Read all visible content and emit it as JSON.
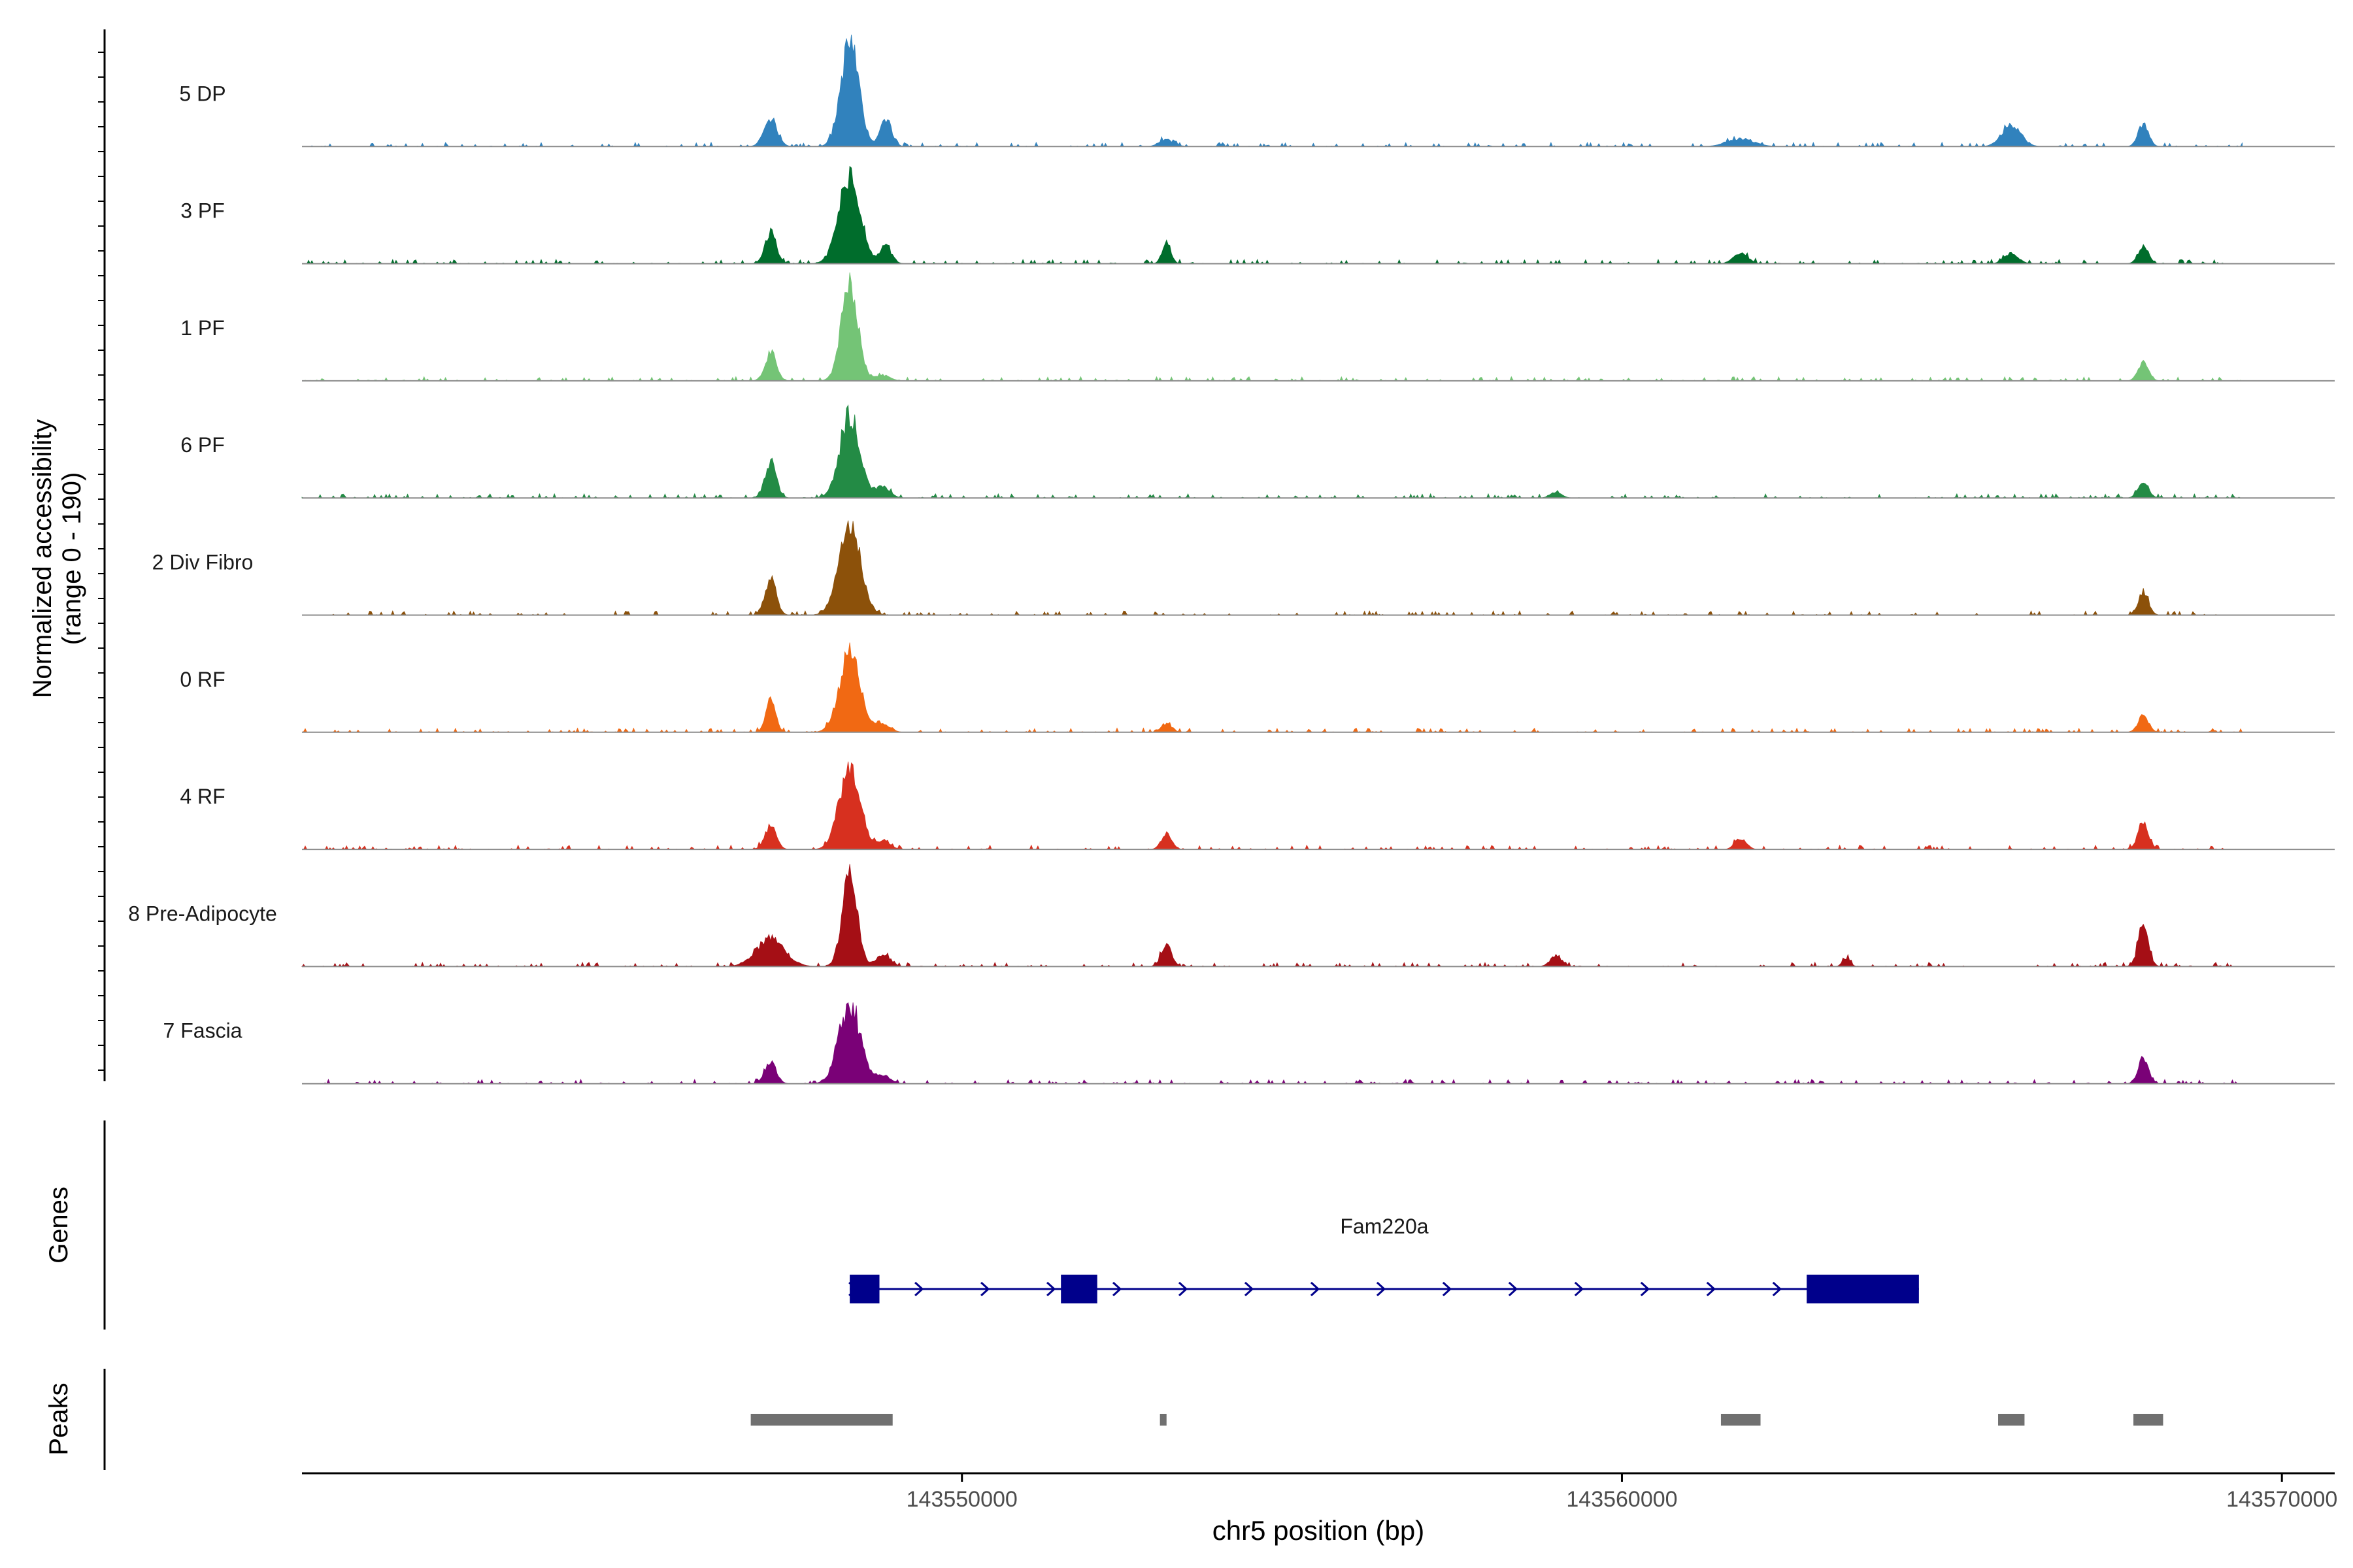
{
  "chart_data": {
    "type": "area",
    "title": "",
    "xlabel": "chr5 position (bp)",
    "ylabel": "Normalized accessibility\n(range 0 - 190)",
    "ylabel_lines": [
      "Normalized accessibility",
      "(range 0 - 190)"
    ],
    "ylim": [
      0,
      190
    ],
    "xlim": [
      143540000,
      143570800
    ],
    "x_ticks": [
      143550000,
      143560000,
      143570000
    ],
    "x_tick_labels": [
      "143550000",
      "143560000",
      "143570000"
    ],
    "series": [
      {
        "name": "5 DP",
        "color": "#3182bd",
        "peaks": [
          [
            143547100,
            50,
            140
          ],
          [
            143548300,
            185,
            190
          ],
          [
            143548850,
            50,
            120
          ],
          [
            143553100,
            12,
            150
          ],
          [
            143561800,
            14,
            280
          ],
          [
            143565900,
            40,
            200
          ],
          [
            143567900,
            42,
            110
          ]
        ]
      },
      {
        "name": "3 PF",
        "color": "#006d2c",
        "peaks": [
          [
            143547100,
            55,
            120
          ],
          [
            143548300,
            160,
            230
          ],
          [
            143548850,
            30,
            120
          ],
          [
            143553100,
            42,
            90
          ],
          [
            143561800,
            20,
            150
          ],
          [
            143565900,
            18,
            150
          ],
          [
            143567900,
            30,
            110
          ]
        ]
      },
      {
        "name": "1 PF",
        "color": "#74c476",
        "peaks": [
          [
            143547100,
            50,
            120
          ],
          [
            143548300,
            170,
            180
          ],
          [
            143548800,
            10,
            150
          ],
          [
            143567900,
            35,
            110
          ]
        ]
      },
      {
        "name": "6 PF",
        "color": "#238b45",
        "peaks": [
          [
            143547100,
            65,
            120
          ],
          [
            143548300,
            150,
            210
          ],
          [
            143548800,
            20,
            150
          ],
          [
            143559000,
            10,
            120
          ],
          [
            143567900,
            30,
            110
          ]
        ]
      },
      {
        "name": "2 Div Fibro",
        "color": "#8c510a",
        "peaks": [
          [
            143547100,
            65,
            120
          ],
          [
            143548300,
            165,
            230
          ],
          [
            143567900,
            40,
            110
          ]
        ]
      },
      {
        "name": "0 RF",
        "color": "#f16913",
        "peaks": [
          [
            143547100,
            65,
            100
          ],
          [
            143548300,
            140,
            220
          ],
          [
            143548800,
            15,
            150
          ],
          [
            143553100,
            15,
            110
          ],
          [
            143567900,
            30,
            110
          ]
        ]
      },
      {
        "name": "4 RF",
        "color": "#d7301f",
        "peaks": [
          [
            143547100,
            42,
            120
          ],
          [
            143548300,
            150,
            220
          ],
          [
            143548800,
            15,
            150
          ],
          [
            143553100,
            28,
            110
          ],
          [
            143561800,
            20,
            120
          ],
          [
            143567900,
            50,
            110
          ]
        ]
      },
      {
        "name": "8 Pre-Adipocyte",
        "color": "#a50f15",
        "peaks": [
          [
            143547100,
            50,
            300
          ],
          [
            143548300,
            165,
            160
          ],
          [
            143548800,
            20,
            150
          ],
          [
            143553100,
            38,
            110
          ],
          [
            143559000,
            20,
            120
          ],
          [
            143563400,
            15,
            80
          ],
          [
            143567900,
            75,
            110
          ]
        ]
      },
      {
        "name": "7 Fascia",
        "color": "#7a0177",
        "peaks": [
          [
            143547100,
            40,
            120
          ],
          [
            143548300,
            140,
            230
          ],
          [
            143548800,
            15,
            150
          ],
          [
            143567900,
            45,
            110
          ]
        ]
      }
    ],
    "genes": {
      "label": "Genes",
      "name": "Fam220a",
      "strand": "+",
      "start": 143548300,
      "end": 143564500,
      "exons": [
        [
          143548300,
          143548750
        ],
        [
          143551500,
          143552050
        ],
        [
          143562800,
          143564500
        ]
      ]
    },
    "peaks_track": {
      "label": "Peaks",
      "regions": [
        [
          143546800,
          143548950
        ],
        [
          143553000,
          143553100
        ],
        [
          143561500,
          143562100
        ],
        [
          143565700,
          143566100
        ],
        [
          143567750,
          143568200
        ]
      ]
    }
  }
}
